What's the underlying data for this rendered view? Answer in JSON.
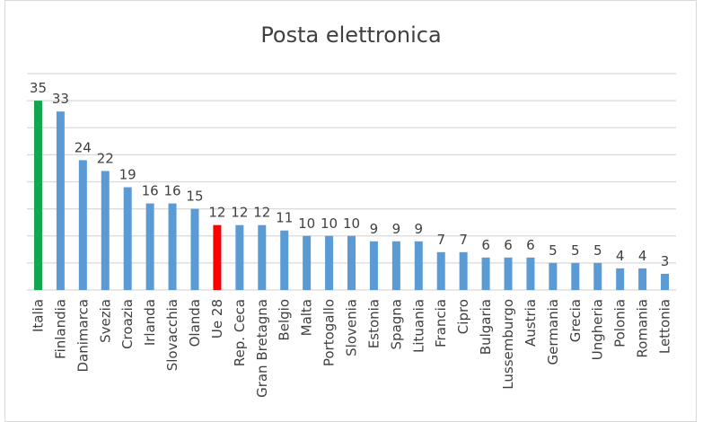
{
  "chart_data": {
    "type": "bar",
    "title": "Posta elettronica",
    "categories": [
      "Italia",
      "Finlandia",
      "Danimarca",
      "Svezia",
      "Croazia",
      "Irlanda",
      "Slovacchia",
      "Olanda",
      "Ue 28",
      "Rep. Ceca",
      "Gran Bretagna",
      "Belgio",
      "Malta",
      "Portogallo",
      "Slovenia",
      "Estonia",
      "Spagna",
      "Lituania",
      "Francia",
      "Cipro",
      "Bulgaria",
      "Lussemburgo",
      "Austria",
      "Germania",
      "Grecia",
      "Ungheria",
      "Polonia",
      "Romania",
      "Lettonia"
    ],
    "values": [
      35,
      33,
      24,
      22,
      19,
      16,
      16,
      15,
      12,
      12,
      12,
      11,
      10,
      10,
      10,
      9,
      9,
      9,
      7,
      7,
      6,
      6,
      6,
      5,
      5,
      5,
      4,
      4,
      3
    ],
    "ylim": [
      0,
      40
    ],
    "grid_step": 5,
    "grid": true,
    "y_axis_tick_labels_shown": false,
    "data_labels": true,
    "colors": {
      "default": "#5b9bd5",
      "Italia": "#13a651",
      "Ue 28": "#ff0000",
      "grid": "#d9d9d9"
    },
    "xlabel": "",
    "ylabel": ""
  }
}
